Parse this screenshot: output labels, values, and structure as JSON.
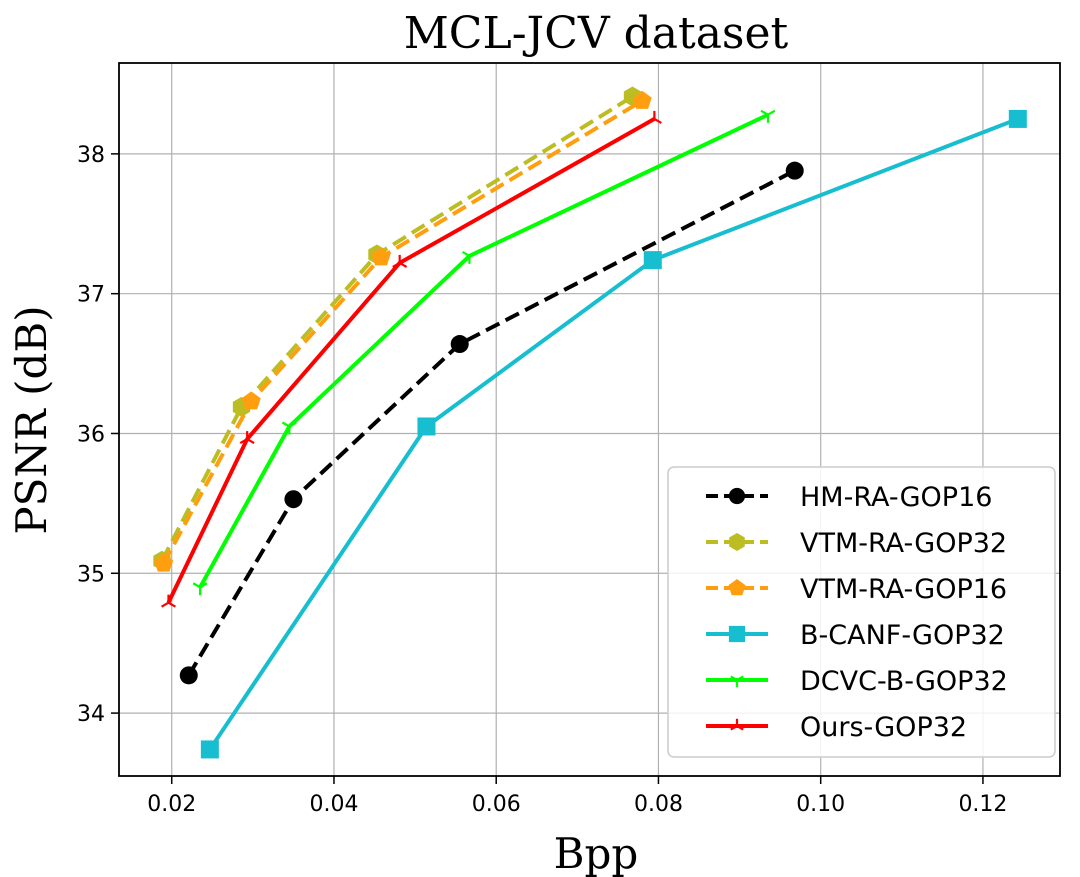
{
  "chart_data": {
    "type": "line",
    "title": "MCL-JCV dataset",
    "xlabel": "Bpp",
    "ylabel": "PSNR (dB)",
    "xlim": [
      0.0135,
      0.1295
    ],
    "ylim": [
      33.55,
      38.65
    ],
    "xticks": [
      0.02,
      0.04,
      0.06,
      0.08,
      0.1,
      0.12
    ],
    "xtick_labels": [
      "0.02",
      "0.04",
      "0.06",
      "0.08",
      "0.10",
      "0.12"
    ],
    "yticks": [
      34,
      35,
      36,
      37,
      38
    ],
    "ytick_labels": [
      "34",
      "35",
      "36",
      "37",
      "38"
    ],
    "grid": true,
    "legend_position": "lower-right",
    "series": [
      {
        "name": "HM-RA-GOP16",
        "color": "#000000",
        "dash": "dashed",
        "marker": "circle",
        "x": [
          0.0221,
          0.035,
          0.0555,
          0.0968
        ],
        "y": [
          34.27,
          35.53,
          36.64,
          37.88
        ]
      },
      {
        "name": "VTM-RA-GOP32",
        "color": "#bcbd22",
        "dash": "dashed",
        "marker": "hexagon",
        "x": [
          0.0188,
          0.0286,
          0.0453,
          0.0768
        ],
        "y": [
          35.09,
          36.19,
          37.28,
          38.41
        ]
      },
      {
        "name": "VTM-RA-GOP16",
        "color": "#ff9f0f",
        "dash": "dashed",
        "marker": "pentagon",
        "x": [
          0.019,
          0.0298,
          0.0458,
          0.078
        ],
        "y": [
          35.07,
          36.23,
          37.26,
          38.38
        ]
      },
      {
        "name": "B-CANF-GOP32",
        "color": "#17becf",
        "dash": "solid",
        "marker": "square",
        "x": [
          0.0247,
          0.0514,
          0.0793,
          0.1243
        ],
        "y": [
          33.74,
          36.05,
          37.24,
          38.25
        ]
      },
      {
        "name": "DCVC-B-GOP32",
        "color": "#00ff00",
        "dash": "solid",
        "marker": "tri_down",
        "x": [
          0.0235,
          0.0345,
          0.0567,
          0.0935
        ],
        "y": [
          34.9,
          36.05,
          37.27,
          38.28
        ]
      },
      {
        "name": "Ours-GOP32",
        "color": "#ff0000",
        "dash": "solid",
        "marker": "tri_up",
        "x": [
          0.0196,
          0.0293,
          0.0481,
          0.0795
        ],
        "y": [
          34.79,
          35.96,
          37.22,
          38.25
        ]
      }
    ]
  }
}
